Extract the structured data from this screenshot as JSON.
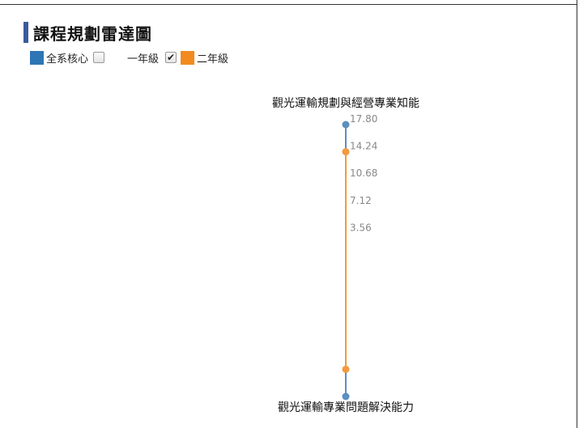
{
  "header": {
    "title": "課程規劃雷達圖"
  },
  "legend": {
    "items": [
      {
        "label": "全系核心",
        "color": "#2e75b6",
        "checked": false
      },
      {
        "label": "一年級",
        "color": "",
        "checked": true
      },
      {
        "label": "二年級",
        "color": "#f28a1f",
        "checked": false
      }
    ]
  },
  "chart_data": {
    "type": "radar",
    "title": "",
    "axes": [
      "觀光運輸規劃與經營專業知能",
      "觀光運輸專業問題解決能力"
    ],
    "max": 17.8,
    "ticks": [
      17.8,
      14.24,
      10.68,
      7.12,
      3.56
    ],
    "tick_labels": [
      "17.80",
      "14.24",
      "10.68",
      "7.12",
      "3.56"
    ],
    "series": [
      {
        "name": "全系核心",
        "color": "#5b8fc0",
        "values": [
          17.8,
          17.8
        ]
      },
      {
        "name": "二年級",
        "color": "#f29a3d",
        "values": [
          14.24,
          14.24
        ]
      }
    ]
  }
}
